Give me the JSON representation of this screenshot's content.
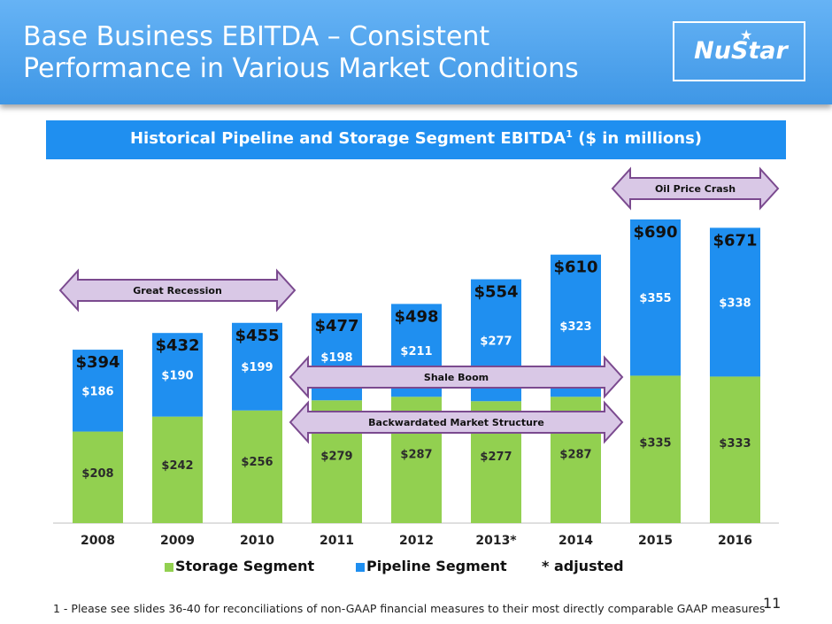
{
  "header": {
    "title_line1": "Base Business EBITDA – Consistent",
    "title_line2": "Performance in Various Market Conditions",
    "logo_text": "NuStar"
  },
  "subtitle": {
    "text": "Historical Pipeline and Storage Segment EBITDA",
    "footnote_marker": "1",
    "text_after": " ($ in millions)"
  },
  "colors": {
    "storage": "#92d050",
    "pipeline": "#1f8ff0",
    "header_bg": "#4fa4ee",
    "arrow_fill": "#d9c8e6",
    "arrow_stroke": "#7b4a8f"
  },
  "chart_data": {
    "type": "bar",
    "stacked": true,
    "categories": [
      "2008",
      "2009",
      "2010",
      "2011",
      "2012",
      "2013*",
      "2014",
      "2015",
      "2016"
    ],
    "series": [
      {
        "name": "Storage Segment",
        "values": [
          208,
          242,
          256,
          279,
          287,
          277,
          287,
          335,
          333
        ]
      },
      {
        "name": "Pipeline Segment",
        "values": [
          186,
          190,
          199,
          198,
          211,
          277,
          323,
          355,
          338
        ]
      }
    ],
    "totals": [
      394,
      432,
      455,
      477,
      498,
      554,
      610,
      690,
      671
    ],
    "value_labels": {
      "storage": [
        "$208",
        "$242",
        "$256",
        "$279",
        "$287",
        "$277",
        "$287",
        "$335",
        "$333"
      ],
      "pipeline": [
        "$186",
        "$190",
        "$199",
        "$198",
        "$211",
        "$277",
        "$323",
        "$355",
        "$338"
      ],
      "totals": [
        "$394",
        "$432",
        "$455",
        "$477",
        "$498",
        "$554",
        "$610",
        "$690",
        "$671"
      ]
    },
    "ylim": [
      0,
      720
    ],
    "grid": false,
    "legend_position": "bottom",
    "annotations": [
      {
        "label": "Great Recession",
        "from": "2008",
        "to": "2010"
      },
      {
        "label": "Shale Boom",
        "from": "2011",
        "to": "2014"
      },
      {
        "label": "Backwardated Market Structure",
        "from": "2011",
        "to": "2014"
      },
      {
        "label": "Oil Price Crash",
        "from": "2015",
        "to": "2016"
      }
    ]
  },
  "legend": {
    "storage_label": "Storage Segment",
    "pipeline_label": "Pipeline Segment",
    "note": "* adjusted"
  },
  "footnote": "1 - Please see slides 36-40 for reconciliations of non-GAAP financial measures to their most directly comparable GAAP measures",
  "page_number": "11"
}
